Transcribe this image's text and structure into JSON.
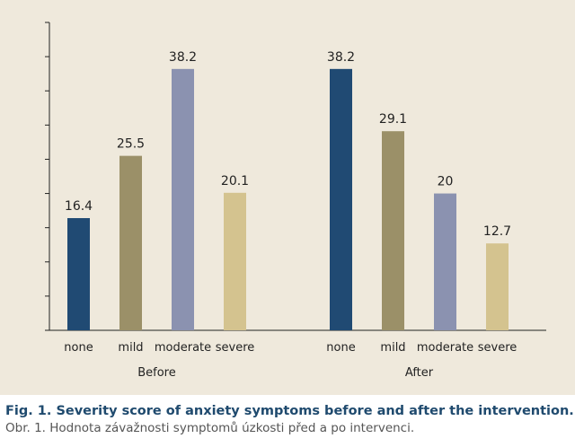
{
  "chart_data": {
    "type": "bar",
    "groups": [
      "Before",
      "After"
    ],
    "categories": [
      "none",
      "mild",
      "moderate",
      "severe"
    ],
    "series": [
      {
        "group": "Before",
        "values": [
          16.4,
          25.5,
          38.2,
          20.1
        ],
        "labels": [
          "16.4",
          "25.5",
          "38.2",
          "20.1"
        ]
      },
      {
        "group": "After",
        "values": [
          38.2,
          29.1,
          20,
          12.7
        ],
        "labels": [
          "38.2",
          "29.1",
          "20",
          "12.7"
        ]
      }
    ],
    "category_colors": [
      "#204a73",
      "#9b9068",
      "#8b92b0",
      "#d4c38f"
    ],
    "ylim": [
      0,
      45
    ],
    "y_tick_step": 5,
    "tick_labels_shown": false,
    "grid": false
  },
  "caption": {
    "english": "Fig. 1. Severity score of anxiety symptoms before and after the intervention.",
    "czech": "Obr. 1. Hodnota závažnosti symptomů úzkosti před a po intervenci."
  }
}
